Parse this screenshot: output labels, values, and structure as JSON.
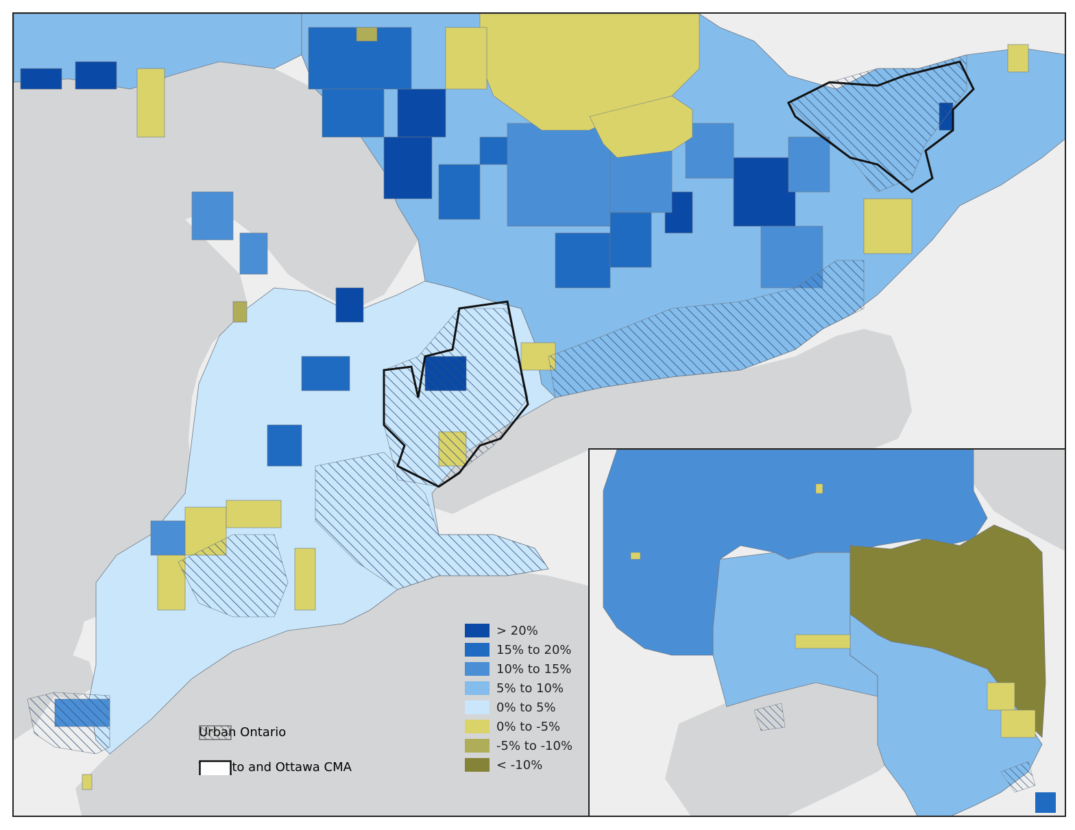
{
  "legend": {
    "classes": [
      {
        "label": "> 20%",
        "color": "#0a4aa6"
      },
      {
        "label": "15% to 20%",
        "color": "#1f6bc1"
      },
      {
        "label": "10% to 15%",
        "color": "#4a8fd6"
      },
      {
        "label": "5% to 10%",
        "color": "#84bceb"
      },
      {
        "label": "0% to 5%",
        "color": "#c9e6fb"
      },
      {
        "label": "0% to -5%",
        "color": "#d9d36a"
      },
      {
        "label": "-5% to -10%",
        "color": "#b0ad58"
      },
      {
        "label": "< -10%",
        "color": "#858337"
      }
    ],
    "urban_label": "Urban Ontario",
    "cma_label": "Toronto and Ottawa CMA"
  },
  "colors": {
    "water": "#d4d5d6",
    "land_outside": "#eeeeee",
    "hatch": "#2f4f7a",
    "boundary": "#6d7784",
    "cma_outline": "#111111"
  }
}
